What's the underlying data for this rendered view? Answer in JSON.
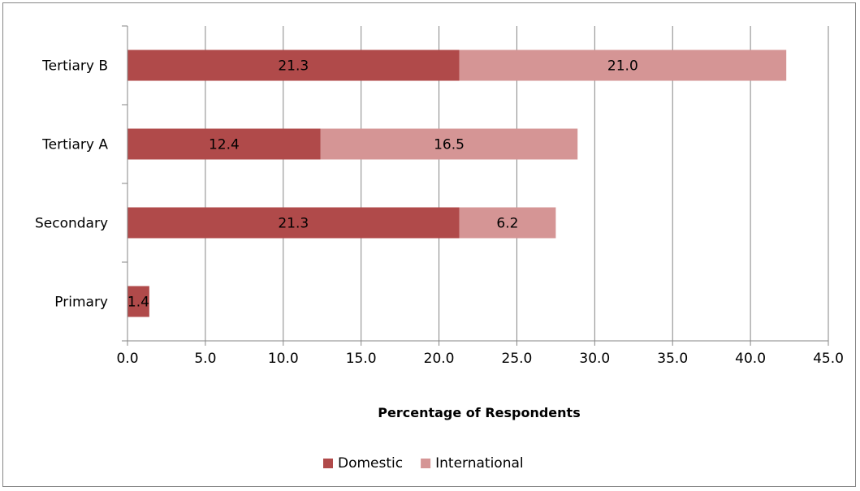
{
  "chart_data": {
    "type": "bar",
    "orientation": "horizontal",
    "stacked": true,
    "categories": [
      "Primary",
      "Secondary",
      "Tertiary A",
      "Tertiary B"
    ],
    "series": [
      {
        "name": "Domestic",
        "values": [
          1.4,
          21.3,
          12.4,
          21.3
        ],
        "labels": [
          "1.4",
          "21.3",
          "12.4",
          "21.3"
        ],
        "color": "#b04a4a"
      },
      {
        "name": "International",
        "values": [
          0,
          6.2,
          16.5,
          21.0
        ],
        "labels": [
          "",
          "6.2",
          "16.5",
          "21.0"
        ],
        "color": "#d59595"
      }
    ],
    "xlabel": "Percentage of Respondents",
    "ylabel": "",
    "xlim": [
      0,
      45
    ],
    "xticks": [
      "0.0",
      "5.0",
      "10.0",
      "15.0",
      "20.0",
      "25.0",
      "30.0",
      "35.0",
      "40.0",
      "45.0"
    ],
    "grid": "vertical",
    "legend": "bottom",
    "axis_color": "#868686",
    "grid_color": "#868686"
  }
}
